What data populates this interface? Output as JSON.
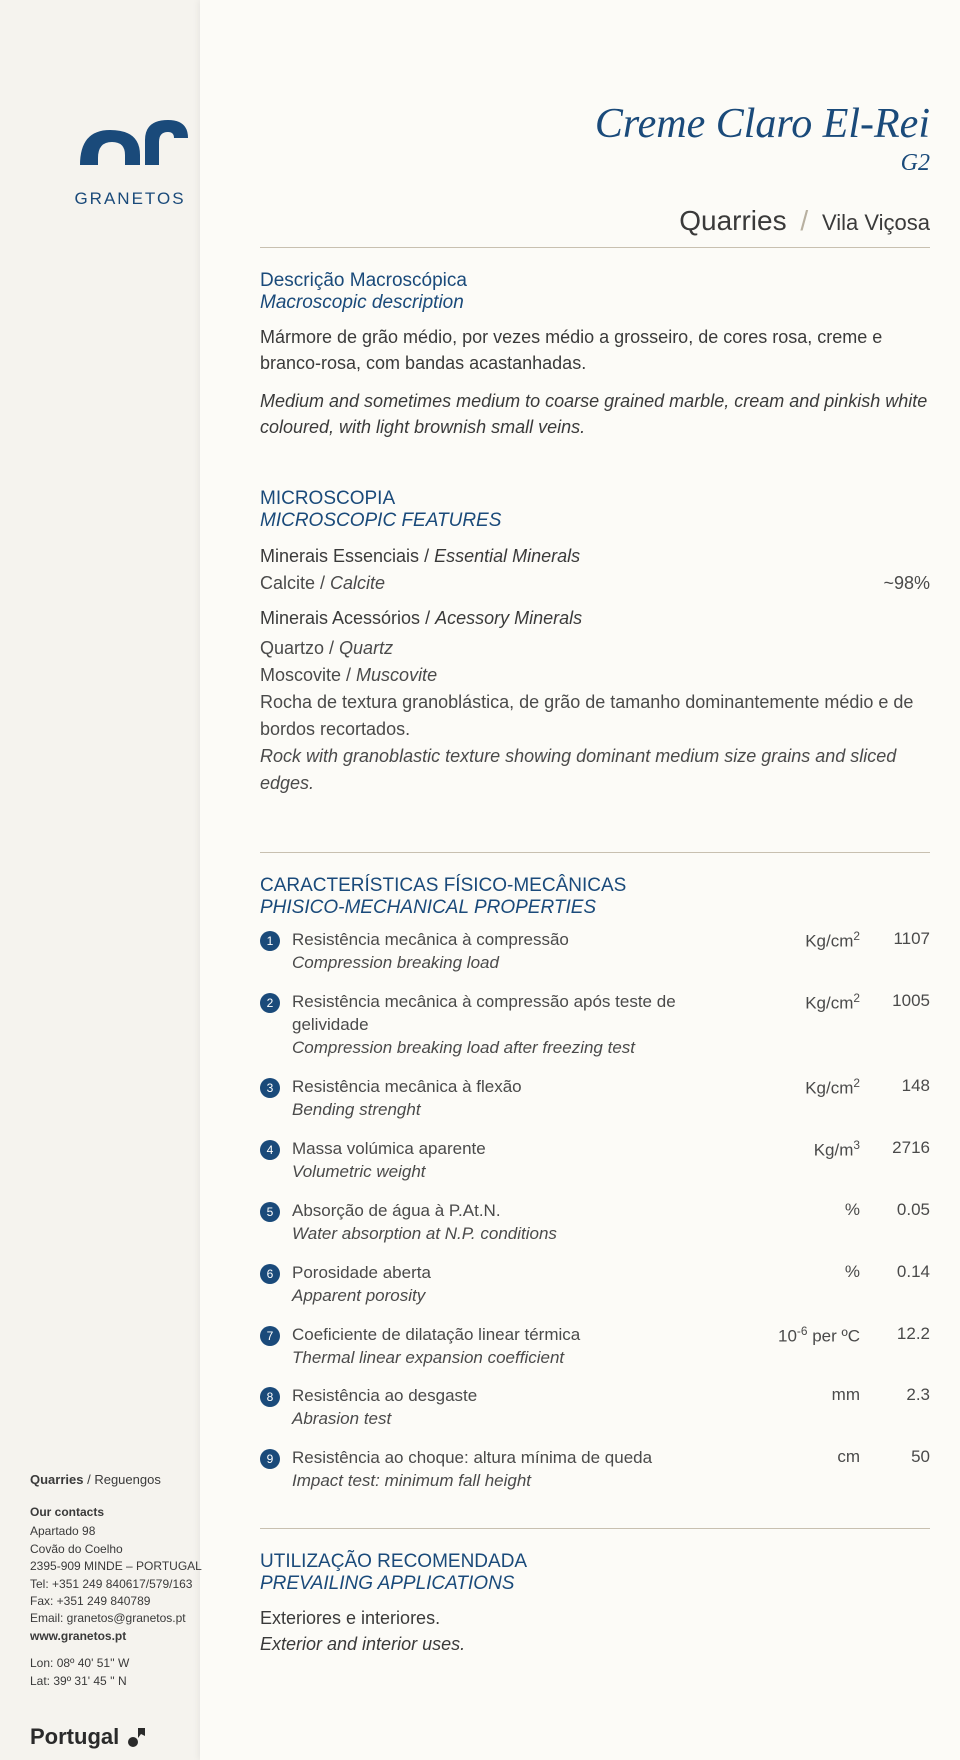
{
  "colors": {
    "brand": "#1a4a7a",
    "text": "#3a3a3a",
    "page_bg": "#fcfbf7",
    "outer_bg": "#f5f3ee",
    "rule": "#c8c0b0"
  },
  "logo": {
    "brand_text": "GRANETOS"
  },
  "header": {
    "title": "Creme Claro El-Rei",
    "subtitle": "G2",
    "quarries_label": "Quarries",
    "location": "Vila Viçosa"
  },
  "description": {
    "heading_pt": "Descrição Macroscópica",
    "heading_en": "Macroscopic description",
    "pt": "Mármore de grão médio, por vezes médio a grosseiro, de cores rosa, creme e branco-rosa, com bandas acastanhadas.",
    "en": "Medium and sometimes medium to coarse grained marble, cream and pinkish white coloured, with light brownish small veins."
  },
  "microscopy": {
    "heading_pt": "MICROSCOPIA",
    "heading_en": "MICROSCOPIC FEATURES",
    "essential_label_pt": "Minerais Essenciais",
    "essential_label_en": "Essential Minerals",
    "essential": {
      "pt": "Calcite",
      "en": "Calcite",
      "pct": "~98%"
    },
    "accessory_label_pt": "Minerais Acessórios",
    "accessory_label_en": "Acessory Minerals",
    "accessory_items": [
      {
        "pt": "Quartzo",
        "en": "Quartz"
      },
      {
        "pt": "Moscovite",
        "en": "Muscovite"
      }
    ],
    "texture_pt": "Rocha de textura granoblástica, de grão de tamanho dominantemente médio e de bordos recortados.",
    "texture_en": "Rock with granoblastic texture showing dominant medium size grains and sliced edges."
  },
  "properties": {
    "heading_pt": "CARACTERÍSTICAS FÍSICO-MECÂNICAS",
    "heading_en": "PHISICO-MECHANICAL PROPERTIES",
    "rows": [
      {
        "n": "1",
        "pt": "Resistência mecânica à compressão",
        "en": "Compression breaking load",
        "unit_html": "Kg/cm<span class='sup'>2</span>",
        "value": "1107"
      },
      {
        "n": "2",
        "pt": "Resistência mecânica à compressão após teste de gelividade",
        "en": "Compression breaking load after freezing test",
        "unit_html": "Kg/cm<span class='sup'>2</span>",
        "value": "1005"
      },
      {
        "n": "3",
        "pt": "Resistência mecânica à flexão",
        "en": "Bending strenght",
        "unit_html": "Kg/cm<span class='sup'>2</span>",
        "value": "148"
      },
      {
        "n": "4",
        "pt": "Massa volúmica aparente",
        "en": "Volumetric weight",
        "unit_html": "Kg/m<span class='sup'>3</span>",
        "value": "2716"
      },
      {
        "n": "5",
        "pt": "Absorção de água à P.At.N.",
        "en": "Water absorption at N.P. conditions",
        "unit_html": "%",
        "value": "0.05"
      },
      {
        "n": "6",
        "pt": "Porosidade aberta",
        "en": "Apparent porosity",
        "unit_html": "%",
        "value": "0.14"
      },
      {
        "n": "7",
        "pt": "Coeficiente de dilatação linear térmica",
        "en": "Thermal linear expansion coefficient",
        "unit_html": "10<span class='sup'>-6</span> per ºC",
        "value": "12.2"
      },
      {
        "n": "8",
        "pt": "Resistência ao desgaste",
        "en": "Abrasion test",
        "unit_html": "mm",
        "value": "2.3"
      },
      {
        "n": "9",
        "pt": "Resistência ao choque: altura mínima de queda",
        "en": "Impact test: minimum fall height",
        "unit_html": "cm",
        "value": "50"
      }
    ]
  },
  "util": {
    "heading_pt": "UTILIZAÇÃO RECOMENDADA",
    "heading_en": "PREVAILING APPLICATIONS",
    "pt": "Exteriores e interiores.",
    "en": "Exterior and interior uses."
  },
  "contacts": {
    "quarries_label": "Quarries",
    "quarries_loc": "Reguengos",
    "heading": "Our contacts",
    "lines": [
      "Apartado 98",
      "Covão do Coelho",
      "2395-909 MINDE – PORTUGAL",
      "Tel: +351 249 840617/579/163",
      "Fax: +351 249 840789",
      "Email: granetos@granetos.pt"
    ],
    "web": "www.granetos.pt",
    "lon": "Lon: 08º 40' 51'' W",
    "lat": "Lat: 39º 31' 45 '' N"
  },
  "footer_brand": "Portugal"
}
